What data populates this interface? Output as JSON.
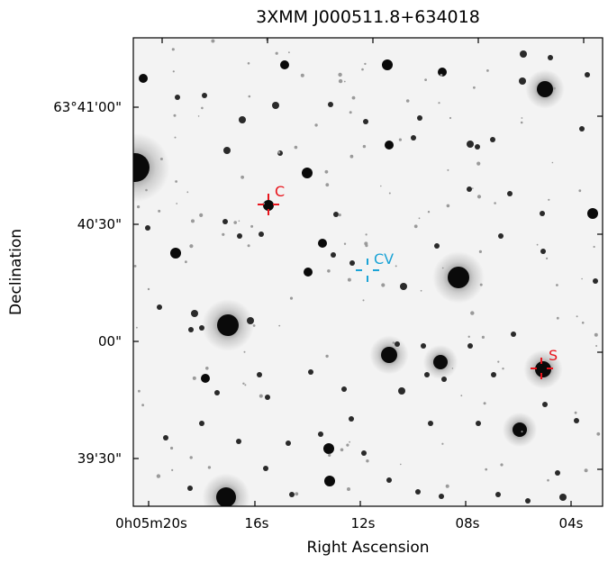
{
  "title": "3XMM J000511.8+634018",
  "x_axis": {
    "label": "Right Ascension",
    "ticks": [
      "0h05m20s",
      "16s",
      "12s",
      "08s",
      "04s"
    ]
  },
  "y_axis": {
    "label": "Declination",
    "ticks": [
      "63°41'00\"",
      "40'30\"",
      "00\"",
      "39'30\""
    ]
  },
  "markers": [
    {
      "id": "C",
      "label": "C",
      "color": "#e8141c"
    },
    {
      "id": "CV",
      "label": "CV",
      "color": "#1aa3d6"
    },
    {
      "id": "S",
      "label": "S",
      "color": "#e8141c"
    }
  ]
}
